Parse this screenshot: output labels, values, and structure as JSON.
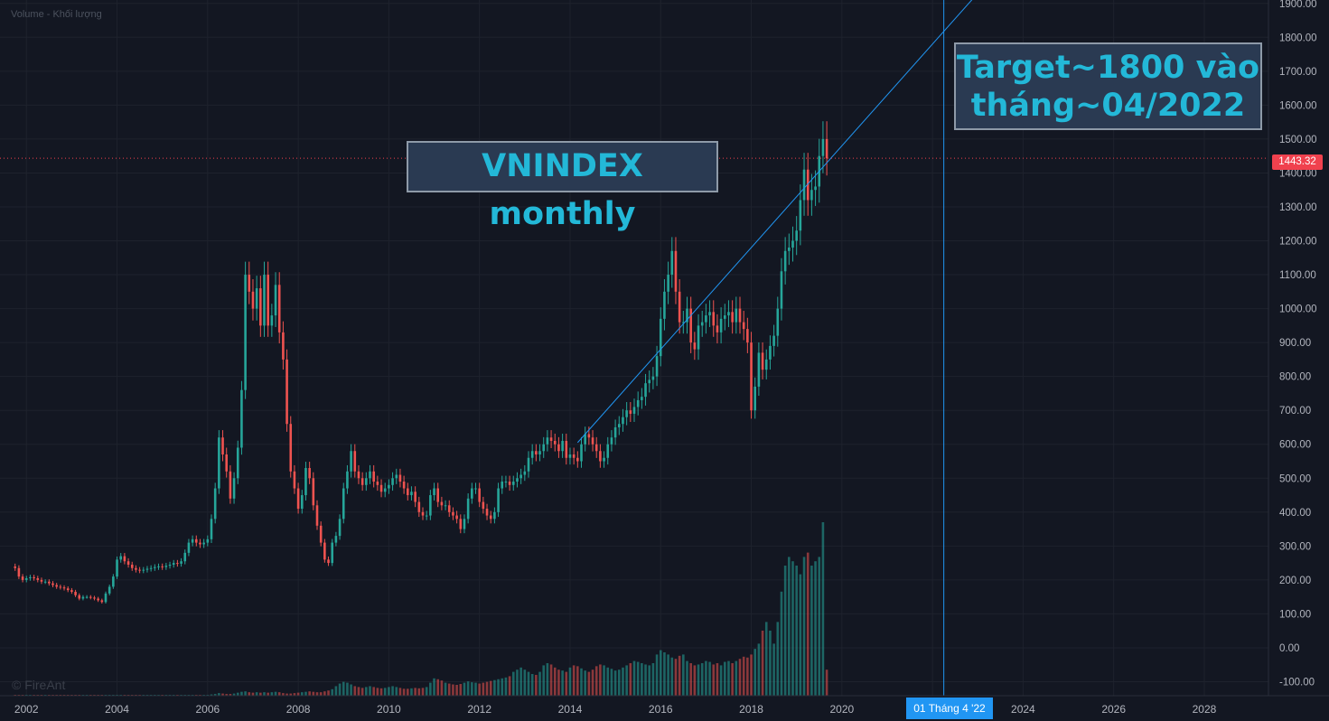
{
  "volume_label": "Volume - Khối lượng",
  "watermark": "© FireAnt",
  "annotations": {
    "title_box": "VNINDEX monthly",
    "target_line1": "Target~1800 vào",
    "target_line2": "tháng~04/2022"
  },
  "last_price_label": "1443.32",
  "crosshair_date_label": "01 Tháng 4 '22",
  "colors": {
    "background": "#131722",
    "up": "#26a69a",
    "down": "#ef5350",
    "trendline": "#2196f3",
    "last_price": "#f0414e",
    "text": "#b2b5be"
  },
  "chart_data": {
    "type": "candlestick",
    "title": "VNINDEX monthly",
    "x_start": "2001-10",
    "x_range": [
      "2001-06",
      "2029-06"
    ],
    "x_ticks": [
      "2002",
      "2004",
      "2006",
      "2008",
      "2010",
      "2012",
      "2014",
      "2016",
      "2018",
      "2020",
      "2022",
      "2024",
      "2026",
      "2028"
    ],
    "y_range": [
      -120,
      1910
    ],
    "y_ticks": [
      "1900.00",
      "1800.00",
      "1700.00",
      "1600.00",
      "1500.00",
      "1400.00",
      "1300.00",
      "1200.00",
      "1100.00",
      "1000.00",
      "900.00",
      "800.00",
      "700.00",
      "600.00",
      "500.00",
      "400.00",
      "300.00",
      "200.00",
      "100.00",
      "0.00",
      "-100.00"
    ],
    "last_price": 1443.32,
    "close": [
      235,
      210,
      200,
      205,
      208,
      205,
      200,
      195,
      195,
      190,
      185,
      180,
      178,
      175,
      170,
      165,
      155,
      145,
      150,
      150,
      148,
      145,
      140,
      135,
      160,
      180,
      210,
      260,
      270,
      255,
      245,
      235,
      230,
      228,
      230,
      233,
      235,
      238,
      240,
      238,
      242,
      245,
      250,
      248,
      255,
      280,
      310,
      320,
      310,
      305,
      310,
      320,
      380,
      470,
      620,
      570,
      520,
      440,
      500,
      590,
      760,
      1100,
      1050,
      1000,
      1060,
      950,
      1100,
      950,
      980,
      1070,
      930,
      850,
      660,
      520,
      470,
      410,
      450,
      530,
      500,
      420,
      360,
      310,
      260,
      250,
      310,
      330,
      380,
      470,
      520,
      580,
      520,
      500,
      480,
      500,
      520,
      490,
      480,
      460,
      470,
      480,
      500,
      510,
      490,
      470,
      450,
      460,
      430,
      400,
      390,
      390,
      450,
      470,
      430,
      420,
      420,
      400,
      390,
      380,
      350,
      380,
      440,
      470,
      470,
      430,
      410,
      390,
      380,
      400,
      470,
      490,
      490,
      480,
      490,
      500,
      510,
      520,
      560,
      580,
      570,
      580,
      600,
      620,
      610,
      600,
      580,
      610,
      560,
      570,
      560,
      550,
      600,
      630,
      620,
      600,
      580,
      550,
      560,
      600,
      620,
      650,
      660,
      680,
      700,
      690,
      710,
      730,
      740,
      780,
      790,
      800,
      860,
      970,
      1050,
      1100,
      1170,
      1050,
      960,
      960,
      1000,
      900,
      880,
      950,
      960,
      980,
      990,
      950,
      930,
      970,
      980,
      990,
      960,
      1000,
      960,
      940,
      900,
      700,
      770,
      870,
      820,
      850,
      890,
      920,
      1000,
      1110,
      1170,
      1180,
      1200,
      1230,
      1320,
      1410,
      1320,
      1350,
      1360,
      1450,
      1500,
      1443
    ],
    "volume": [
      2,
      2,
      2,
      2,
      2,
      2,
      2,
      2,
      2,
      2,
      2,
      2,
      2,
      2,
      2,
      2,
      2,
      2,
      2,
      2,
      2,
      2,
      2,
      2,
      2,
      2,
      2,
      2,
      2,
      2,
      2,
      2,
      2,
      2,
      2,
      2,
      2,
      2,
      2,
      2,
      2,
      2,
      2,
      2,
      2,
      2,
      2,
      2,
      2,
      2,
      2,
      2,
      3,
      4,
      6,
      5,
      4,
      4,
      5,
      7,
      9,
      10,
      8,
      7,
      8,
      7,
      8,
      7,
      8,
      9,
      8,
      6,
      5,
      5,
      6,
      7,
      8,
      9,
      10,
      9,
      8,
      8,
      10,
      12,
      15,
      22,
      28,
      32,
      30,
      26,
      22,
      20,
      18,
      20,
      22,
      20,
      18,
      17,
      18,
      20,
      22,
      20,
      18,
      16,
      16,
      17,
      18,
      17,
      18,
      20,
      30,
      40,
      38,
      35,
      30,
      28,
      26,
      25,
      27,
      30,
      33,
      31,
      30,
      28,
      30,
      32,
      34,
      36,
      38,
      40,
      42,
      45,
      55,
      60,
      65,
      60,
      55,
      50,
      48,
      55,
      70,
      75,
      72,
      65,
      60,
      58,
      55,
      65,
      70,
      68,
      63,
      58,
      55,
      60,
      68,
      72,
      70,
      65,
      62,
      58,
      60,
      65,
      70,
      75,
      80,
      78,
      75,
      72,
      70,
      75,
      95,
      105,
      100,
      95,
      88,
      85,
      92,
      95,
      80,
      75,
      70,
      72,
      75,
      80,
      78,
      72,
      75,
      70,
      78,
      80,
      75,
      80,
      85,
      90,
      88,
      95,
      108,
      120,
      150,
      170,
      150,
      120,
      170,
      240,
      300,
      320,
      310,
      300,
      280,
      320,
      330,
      300,
      310,
      320,
      400,
      60
    ]
  }
}
